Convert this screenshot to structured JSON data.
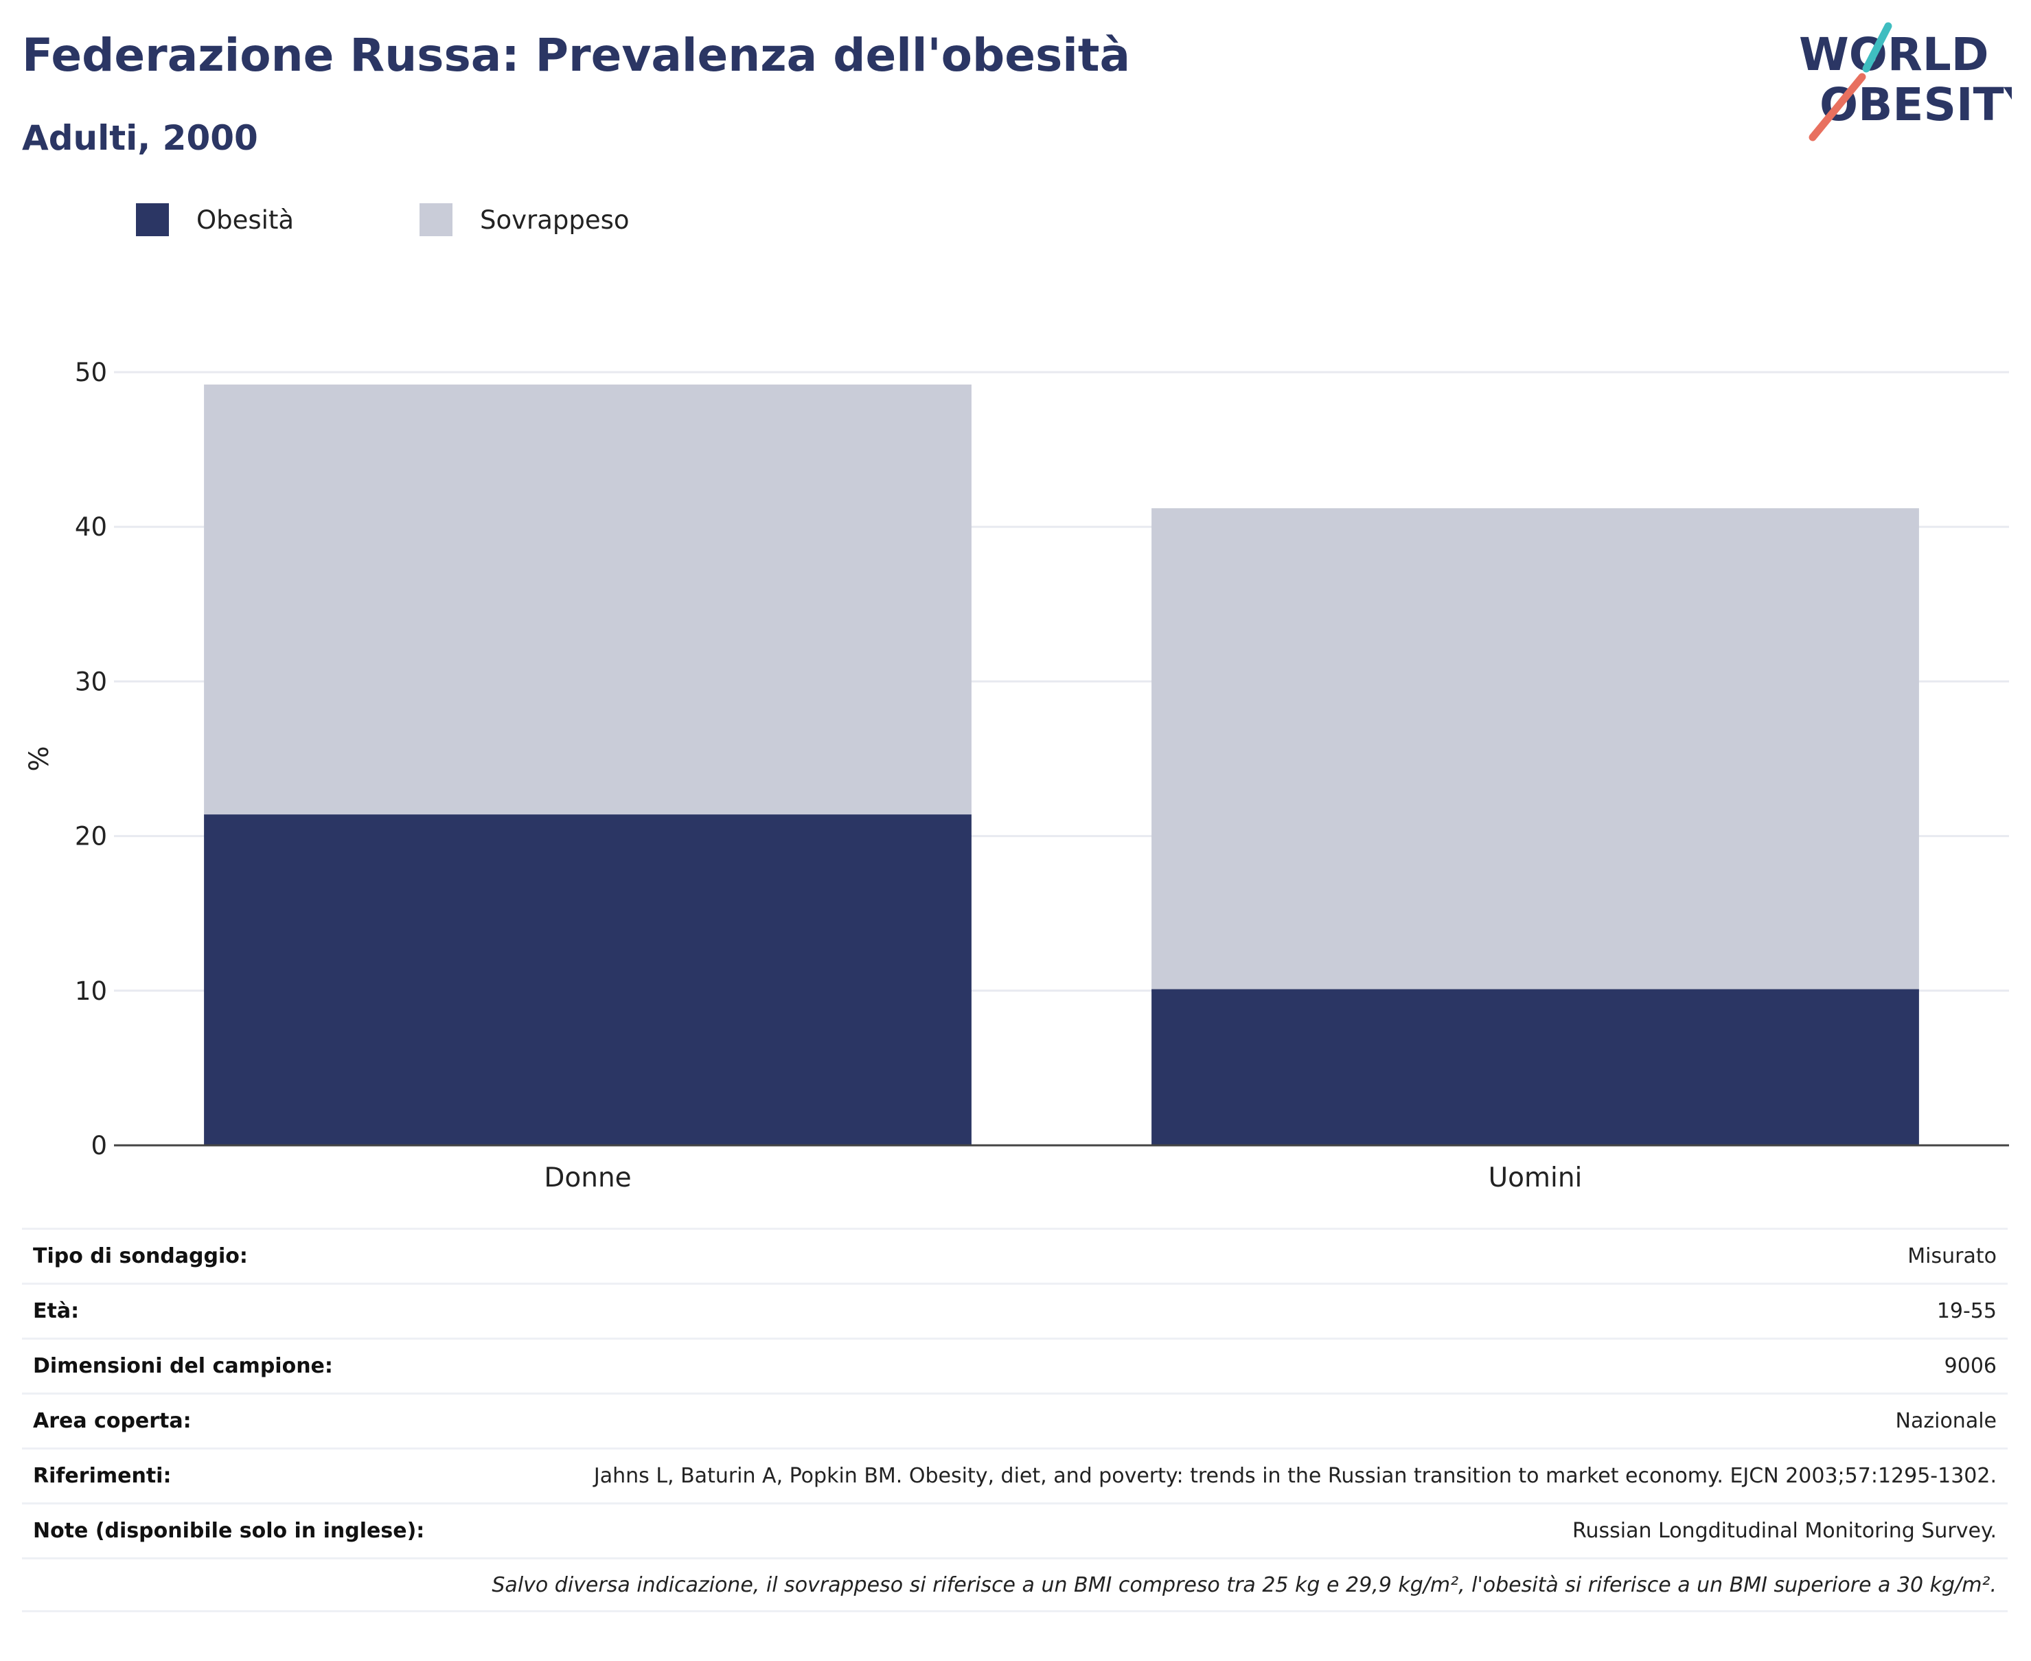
{
  "header": {
    "title": "Federazione Russa: Prevalenza dell'obesità",
    "subtitle": "Adulti, 2000"
  },
  "logo": {
    "line1": "WORLD",
    "line2": "OBESITY",
    "colors": {
      "text": "#2b3664",
      "teal": "#3fbdc0",
      "coral": "#e8705f"
    }
  },
  "legend": [
    {
      "label": "Obesità",
      "color": "#2b3664"
    },
    {
      "label": "Sovrappeso",
      "color": "#c9ccd8"
    }
  ],
  "chart_data": {
    "type": "bar",
    "stacked": true,
    "categories": [
      "Donne",
      "Uomini"
    ],
    "series": [
      {
        "name": "Obesità",
        "values": [
          21.4,
          10.1
        ],
        "color": "#2b3664"
      },
      {
        "name": "Sovrappeso",
        "values": [
          27.8,
          31.1
        ],
        "color": "#c9ccd8"
      }
    ],
    "ylabel": "%",
    "ylim": [
      0,
      50
    ],
    "yticks": [
      0,
      10,
      20,
      30,
      40,
      50
    ],
    "grid": true,
    "legend_position": "top-left"
  },
  "meta": [
    {
      "label": "Tipo di sondaggio:",
      "value": "Misurato"
    },
    {
      "label": "Età:",
      "value": "19-55"
    },
    {
      "label": "Dimensioni del campione:",
      "value": "9006"
    },
    {
      "label": "Area coperta:",
      "value": "Nazionale"
    },
    {
      "label": "Riferimenti:",
      "value": "Jahns L, Baturin A, Popkin BM. Obesity, diet, and poverty: trends in the Russian transition to market economy. EJCN 2003;57:1295-1302."
    },
    {
      "label": "Note (disponibile solo in inglese):",
      "value": "Russian Longditudinal Monitoring Survey."
    },
    {
      "label": "",
      "value": "Salvo diversa indicazione, il sovrappeso si riferisce a un BMI compreso tra 25 kg e 29,9 kg/m², l'obesità si riferisce a un BMI superiore a 30 kg/m²."
    }
  ]
}
